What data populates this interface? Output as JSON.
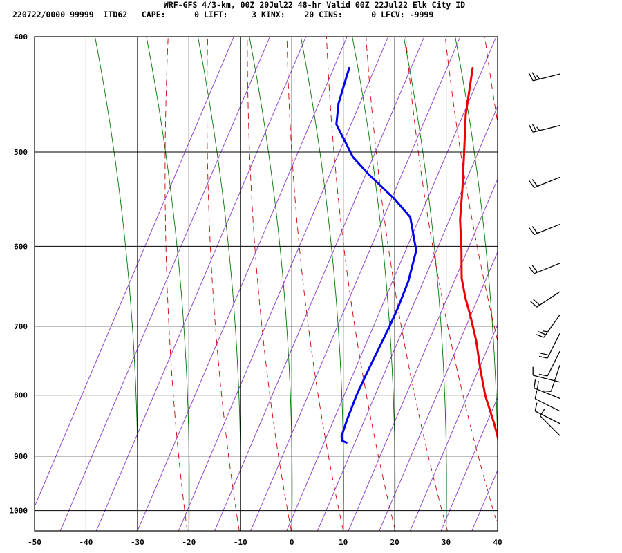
{
  "header": {
    "title": "WRF-GFS 4/3-km, 00Z 20Jul22 48-hr Valid 00Z 22Jul22 Elk City ID",
    "stats": "220722/0000 99999  ITD62   CAPE:      0 LIFT:     3 KINX:    20 CINS:      0 LFCV: -9999"
  },
  "colors": {
    "temperature": "#ee0000",
    "dewpoint": "#0000ee",
    "dry_adiabat": "#cc0000",
    "moist_adiabat": "#007700",
    "mixing_ratio": "#8833cc",
    "grid": "#000000",
    "wind_barb": "#000000"
  },
  "chart_data": {
    "type": "line",
    "diagram": "skew-T log-P",
    "x_unit": "temperature C",
    "y_unit": "pressure mb",
    "xlim": [
      -50,
      40
    ],
    "ylim": [
      1040,
      400
    ],
    "y_scale": "log",
    "x_ticks": [
      "-50",
      "-40",
      "-30",
      "-20",
      "-10",
      "0",
      "10",
      "20",
      "30",
      "40"
    ],
    "y_ticks": [
      "400",
      "500",
      "600",
      "700",
      "800",
      "900",
      "1000"
    ],
    "grid": true,
    "series": [
      {
        "key": "temperature",
        "points": [
          [
            30,
            875
          ],
          [
            27,
            845
          ],
          [
            22,
            800
          ],
          [
            18,
            760
          ],
          [
            14,
            720
          ],
          [
            10,
            686
          ],
          [
            7,
            663
          ],
          [
            4,
            638
          ],
          [
            0.8,
            605
          ],
          [
            -3,
            570
          ],
          [
            -6,
            538
          ],
          [
            -10,
            500
          ],
          [
            -14,
            465
          ],
          [
            -18,
            425
          ]
        ]
      },
      {
        "key": "dewpoint",
        "points": [
          [
            0.5,
            877
          ],
          [
            -0.5,
            874
          ],
          [
            -1.2,
            866
          ],
          [
            -2,
            840
          ],
          [
            -3,
            800
          ],
          [
            -3.5,
            770
          ],
          [
            -4.5,
            700
          ],
          [
            -5,
            675
          ],
          [
            -6,
            642
          ],
          [
            -8,
            605
          ],
          [
            -13,
            567
          ],
          [
            -18,
            548
          ],
          [
            -26,
            522
          ],
          [
            -31,
            505
          ],
          [
            -38,
            474
          ],
          [
            -40,
            455
          ],
          [
            -42,
            425
          ]
        ]
      }
    ],
    "wind_barbs": [
      {
        "p": 430,
        "u": -8,
        "v": -2
      },
      {
        "p": 475,
        "u": -8,
        "v": -2
      },
      {
        "p": 525,
        "u": -5,
        "v": -2
      },
      {
        "p": 575,
        "u": -5,
        "v": -2
      },
      {
        "p": 620,
        "u": -5,
        "v": -2
      },
      {
        "p": 655,
        "u": -6,
        "v": -4
      },
      {
        "p": 685,
        "u": -5,
        "v": -7
      },
      {
        "p": 710,
        "u": -3,
        "v": -6
      },
      {
        "p": 735,
        "u": -2,
        "v": -4
      },
      {
        "p": 755,
        "u": -1,
        "v": -3
      },
      {
        "p": 780,
        "u": -4,
        "v": 1
      },
      {
        "p": 805,
        "u": -5,
        "v": 2
      },
      {
        "p": 825,
        "u": -4,
        "v": 2
      },
      {
        "p": 845,
        "u": -4,
        "v": 2
      },
      {
        "p": 865,
        "u": -3,
        "v": 3
      }
    ]
  }
}
